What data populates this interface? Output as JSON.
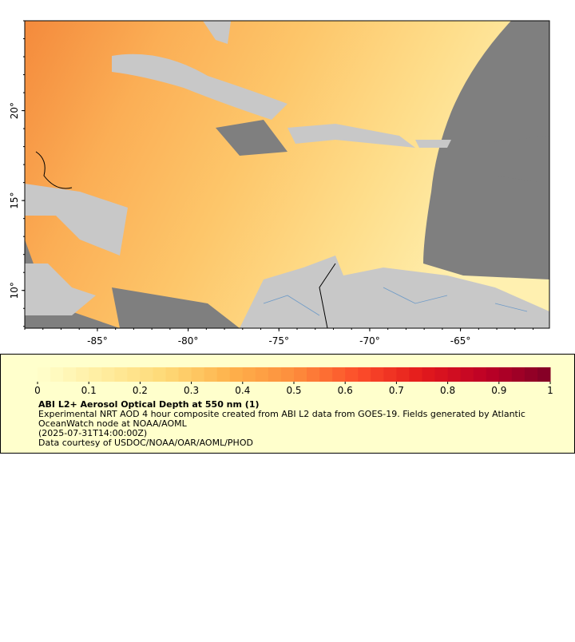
{
  "map": {
    "xlim": [
      -89.0,
      -60.1
    ],
    "ylim": [
      7.9,
      25.0
    ],
    "xticks": [
      {
        "value": -85,
        "label": "-85°"
      },
      {
        "value": -80,
        "label": "-80°"
      },
      {
        "value": -75,
        "label": "-75°"
      },
      {
        "value": -70,
        "label": "-70°"
      },
      {
        "value": -65,
        "label": "-65°"
      }
    ],
    "yticks": [
      {
        "value": 10,
        "label": "10°"
      },
      {
        "value": 15,
        "label": "15°"
      },
      {
        "value": 20,
        "label": "20°"
      }
    ]
  },
  "legend": {
    "range": [
      0,
      1
    ],
    "ticks": [
      0,
      0.1,
      0.2,
      0.3,
      0.4,
      0.5,
      0.6,
      0.7,
      0.8,
      0.9,
      1
    ],
    "colors": [
      "#ffffcc",
      "#ffeda0",
      "#fed976",
      "#feb24c",
      "#fd8d3c",
      "#fc4e2a",
      "#e31a1c",
      "#bd0026",
      "#800026"
    ],
    "title": "ABI L2+ Aerosol Optical Depth at 550 nm (1)",
    "lines": [
      "Experimental NRT AOD 4 hour composite created from ABI L2 data from GOES-19. Fields generated by Atlantic",
      "OceanWatch node at NOAA/AOML",
      "(2025-07-31T14:00:00Z)",
      "Data courtesy of USDOC/NOAA/OAR/AOML/PHOD"
    ]
  }
}
